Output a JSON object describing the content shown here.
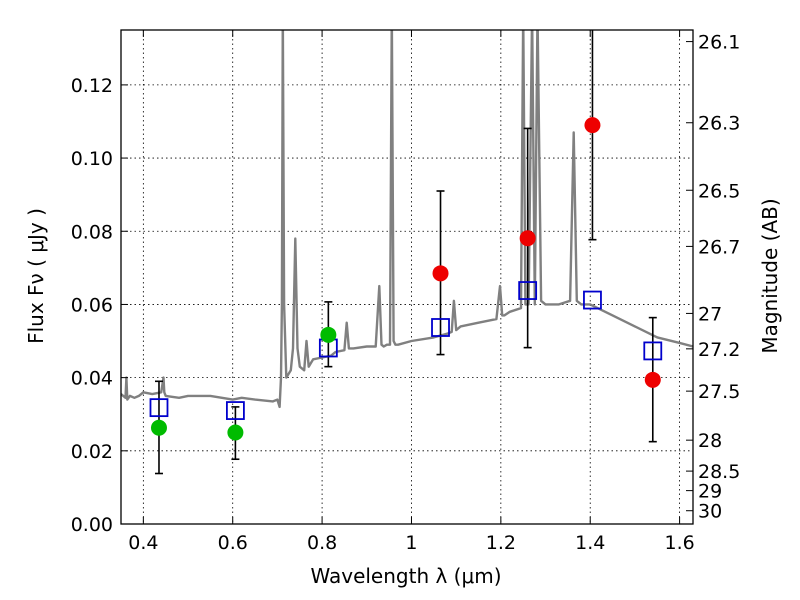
{
  "chart_data": {
    "type": "scatter",
    "xlabel": "Wavelength  λ (μm)",
    "ylabel": "Flux  Fν  ( μJy )",
    "y2label": "Magnitude (AB)",
    "xlim": [
      0.35,
      1.63
    ],
    "ylim": [
      0.0,
      0.135
    ],
    "grid": true,
    "x_ticks": [
      0.4,
      0.6,
      0.8,
      1.0,
      1.2,
      1.4,
      1.6
    ],
    "x_tick_labels": [
      "0.4",
      "0.6",
      "0.8",
      "1",
      "1.2",
      "1.4",
      "1.6"
    ],
    "y_ticks": [
      0.0,
      0.02,
      0.04,
      0.06,
      0.08,
      0.1,
      0.12
    ],
    "y_tick_labels": [
      "0.00",
      "0.02",
      "0.04",
      "0.06",
      "0.08",
      "0.10",
      "0.12"
    ],
    "mag_ticks": [
      26.1,
      26.3,
      26.5,
      26.7,
      27,
      27.2,
      27.5,
      28,
      28.5,
      29,
      30
    ],
    "mag_tick_labels": [
      "26.1",
      "26.3",
      "26.5",
      "26.7",
      "27",
      "27.2",
      "27.5",
      "28",
      "28.5",
      "29",
      "30"
    ],
    "series": [
      {
        "name": "observed (green)",
        "color": "#00bb00",
        "x": [
          0.435,
          0.606,
          0.814
        ],
        "y": [
          0.0263,
          0.025,
          0.0517
        ],
        "yerr": [
          [
            0.0125,
            0.0127
          ],
          [
            0.0073,
            0.007
          ],
          [
            0.0087,
            0.009
          ]
        ]
      },
      {
        "name": "observed (red)",
        "color": "#ee0000",
        "x": [
          1.065,
          1.26,
          1.405,
          1.54
        ],
        "y": [
          0.0685,
          0.0781,
          0.109,
          0.0394
        ],
        "yerr": [
          [
            0.0222,
            0.0225
          ],
          [
            0.0299,
            0.03
          ],
          [
            0.0313,
            0.032
          ],
          [
            0.0169,
            0.017
          ]
        ]
      },
      {
        "name": "model photometry",
        "color": "#0000cc",
        "marker": "open-square",
        "x": [
          0.435,
          0.606,
          0.814,
          1.065,
          1.26,
          1.405,
          1.54
        ],
        "y": [
          0.0318,
          0.031,
          0.0481,
          0.0537,
          0.0638,
          0.0612,
          0.0473
        ]
      },
      {
        "name": "model spectrum",
        "color": "#808080",
        "kind": "line",
        "x": [
          0.35,
          0.36,
          0.362,
          0.364,
          0.37,
          0.38,
          0.39,
          0.4,
          0.42,
          0.44,
          0.445,
          0.447,
          0.45,
          0.48,
          0.5,
          0.55,
          0.6,
          0.62,
          0.65,
          0.69,
          0.7,
          0.705,
          0.708,
          0.71,
          0.712,
          0.715,
          0.72,
          0.73,
          0.735,
          0.74,
          0.745,
          0.75,
          0.76,
          0.765,
          0.77,
          0.775,
          0.78,
          0.8,
          0.82,
          0.83,
          0.85,
          0.855,
          0.86,
          0.87,
          0.9,
          0.92,
          0.928,
          0.933,
          0.938,
          0.945,
          0.952,
          0.956,
          0.96,
          0.964,
          0.97,
          1.0,
          1.05,
          1.08,
          1.09,
          1.095,
          1.1,
          1.11,
          1.15,
          1.19,
          1.198,
          1.203,
          1.208,
          1.22,
          1.245,
          1.25,
          1.255,
          1.262,
          1.27,
          1.276,
          1.282,
          1.29,
          1.3,
          1.33,
          1.355,
          1.363,
          1.37,
          1.38,
          1.4,
          1.45,
          1.5,
          1.55,
          1.6,
          1.63
        ],
        "y": [
          0.0355,
          0.0345,
          0.04,
          0.034,
          0.035,
          0.0345,
          0.035,
          0.036,
          0.0355,
          0.036,
          0.04,
          0.036,
          0.035,
          0.0345,
          0.035,
          0.035,
          0.034,
          0.0345,
          0.034,
          0.0335,
          0.034,
          0.032,
          0.04,
          0.06,
          0.14,
          0.06,
          0.04,
          0.042,
          0.048,
          0.078,
          0.048,
          0.043,
          0.042,
          0.05,
          0.043,
          0.044,
          0.045,
          0.0455,
          0.046,
          0.047,
          0.0475,
          0.055,
          0.048,
          0.048,
          0.0485,
          0.0485,
          0.065,
          0.049,
          0.0485,
          0.049,
          0.049,
          0.14,
          0.05,
          0.049,
          0.049,
          0.05,
          0.051,
          0.052,
          0.0525,
          0.061,
          0.053,
          0.054,
          0.055,
          0.056,
          0.065,
          0.057,
          0.057,
          0.058,
          0.059,
          0.14,
          0.06,
          0.06,
          0.14,
          0.06,
          0.14,
          0.061,
          0.06,
          0.06,
          0.061,
          0.107,
          0.061,
          0.06,
          0.06,
          0.057,
          0.054,
          0.051,
          0.0495,
          0.0485
        ]
      }
    ]
  }
}
